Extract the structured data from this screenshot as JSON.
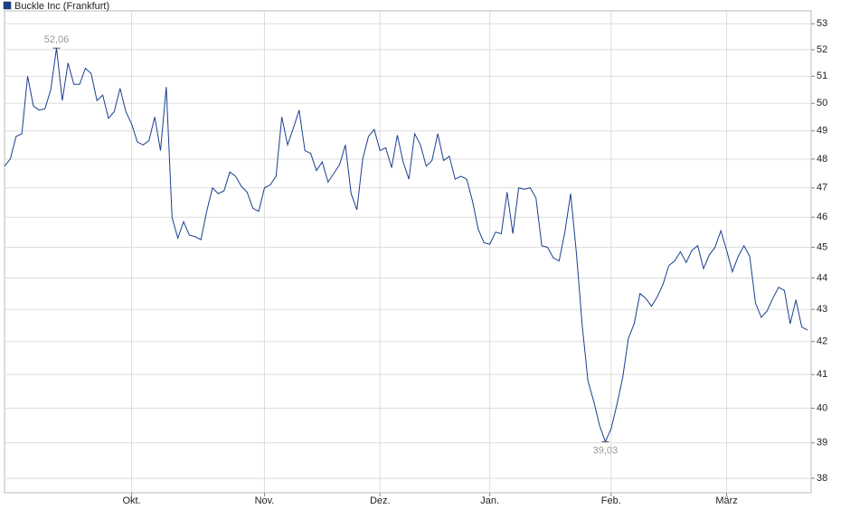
{
  "chart_data": {
    "type": "line",
    "log_scale": true,
    "grid": true,
    "legend": "top-left",
    "series": [
      {
        "name": "Buckle Inc (Frankfurt)",
        "color": "#1a3f8f",
        "values": [
          47.75,
          48.0,
          48.8,
          48.9,
          51.0,
          49.9,
          49.75,
          49.8,
          50.5,
          52.06,
          50.1,
          51.5,
          50.7,
          50.7,
          51.3,
          51.1,
          50.1,
          50.3,
          49.45,
          49.7,
          50.55,
          49.7,
          49.25,
          48.6,
          48.5,
          48.65,
          49.5,
          48.3,
          50.6,
          46.0,
          45.3,
          45.85,
          45.4,
          45.35,
          45.25,
          46.2,
          47.0,
          46.8,
          46.9,
          47.55,
          47.4,
          47.05,
          46.85,
          46.3,
          46.2,
          47.0,
          47.1,
          47.4,
          49.5,
          48.5,
          49.1,
          49.75,
          48.3,
          48.2,
          47.6,
          47.9,
          47.2,
          47.5,
          47.8,
          48.5,
          46.8,
          46.25,
          48.0,
          48.8,
          49.05,
          48.3,
          48.4,
          47.7,
          48.85,
          47.9,
          47.3,
          48.9,
          48.5,
          47.75,
          47.95,
          48.9,
          47.95,
          48.1,
          47.3,
          47.4,
          47.3,
          46.55,
          45.6,
          45.15,
          45.1,
          45.5,
          45.45,
          46.85,
          45.45,
          47.0,
          46.95,
          47.0,
          46.65,
          45.05,
          45.0,
          44.65,
          44.55,
          45.5,
          46.8,
          44.8,
          42.5,
          40.8,
          40.2,
          39.5,
          39.03,
          39.4,
          40.1,
          40.9,
          42.1,
          42.55,
          43.5,
          43.35,
          43.1,
          43.4,
          43.8,
          44.4,
          44.55,
          44.85,
          44.5,
          44.9,
          45.05,
          44.3,
          44.75,
          45.0,
          45.55,
          44.9,
          44.2,
          44.7,
          45.05,
          44.7,
          43.2,
          42.75,
          42.95,
          43.35,
          43.7,
          43.6,
          42.55,
          43.3,
          42.45,
          42.35
        ],
        "value_labels": [
          null,
          null,
          null,
          null,
          null,
          null,
          null,
          null,
          null,
          "52,06",
          null,
          null,
          null,
          null,
          null,
          null,
          null,
          null,
          null,
          null,
          null,
          null,
          null,
          null,
          null,
          null,
          null,
          null,
          null,
          null,
          null,
          null,
          null,
          null,
          null,
          null,
          null,
          null,
          null,
          null,
          null,
          null,
          null,
          null,
          null,
          null,
          null,
          null,
          null,
          null,
          null,
          null,
          null,
          null,
          null,
          null,
          null,
          null,
          null,
          null,
          null,
          null,
          null,
          null,
          null,
          null,
          null,
          null,
          null,
          null,
          null,
          null,
          null,
          null,
          null,
          null,
          null,
          null,
          null,
          null,
          null,
          null,
          null,
          null,
          null,
          null,
          null,
          null,
          null,
          null,
          null,
          null,
          null,
          null,
          null,
          null,
          null,
          null,
          null,
          null,
          null,
          null,
          null,
          null,
          "39,03",
          null,
          null,
          null,
          null,
          null,
          null,
          null,
          null,
          null,
          null,
          null,
          null,
          null,
          null,
          null,
          null,
          null,
          null,
          null,
          null,
          null,
          null,
          null,
          null,
          null,
          null,
          null,
          null,
          null,
          null,
          null,
          null,
          null,
          null,
          null
        ]
      }
    ],
    "categories": [
      null,
      null,
      null,
      null,
      null,
      null,
      null,
      null,
      null,
      null,
      null,
      null,
      null,
      null,
      null,
      null,
      null,
      null,
      null,
      null,
      null,
      null,
      "Okt.",
      null,
      null,
      null,
      null,
      null,
      null,
      null,
      null,
      null,
      null,
      null,
      null,
      null,
      null,
      null,
      null,
      null,
      null,
      null,
      null,
      null,
      null,
      "Nov.",
      null,
      null,
      null,
      null,
      null,
      null,
      null,
      null,
      null,
      null,
      null,
      null,
      null,
      null,
      null,
      null,
      null,
      null,
      null,
      "Dez.",
      null,
      null,
      null,
      null,
      null,
      null,
      null,
      null,
      null,
      null,
      null,
      null,
      null,
      null,
      null,
      null,
      null,
      null,
      "Jan.",
      null,
      null,
      null,
      null,
      null,
      null,
      null,
      null,
      null,
      null,
      null,
      null,
      null,
      null,
      null,
      null,
      null,
      null,
      null,
      null,
      "Feb.",
      null,
      null,
      null,
      null,
      null,
      null,
      null,
      null,
      null,
      null,
      null,
      null,
      null,
      null,
      null,
      null,
      null,
      null,
      null,
      "März",
      null,
      null,
      null,
      null,
      null,
      null,
      null,
      null,
      null,
      null,
      null,
      null,
      null,
      null
    ],
    "ylim": [
      37.6,
      53.5
    ],
    "yticks": [
      38,
      39,
      40,
      41,
      42,
      43,
      44,
      45,
      46,
      47,
      48,
      49,
      50,
      51,
      52,
      53
    ]
  }
}
